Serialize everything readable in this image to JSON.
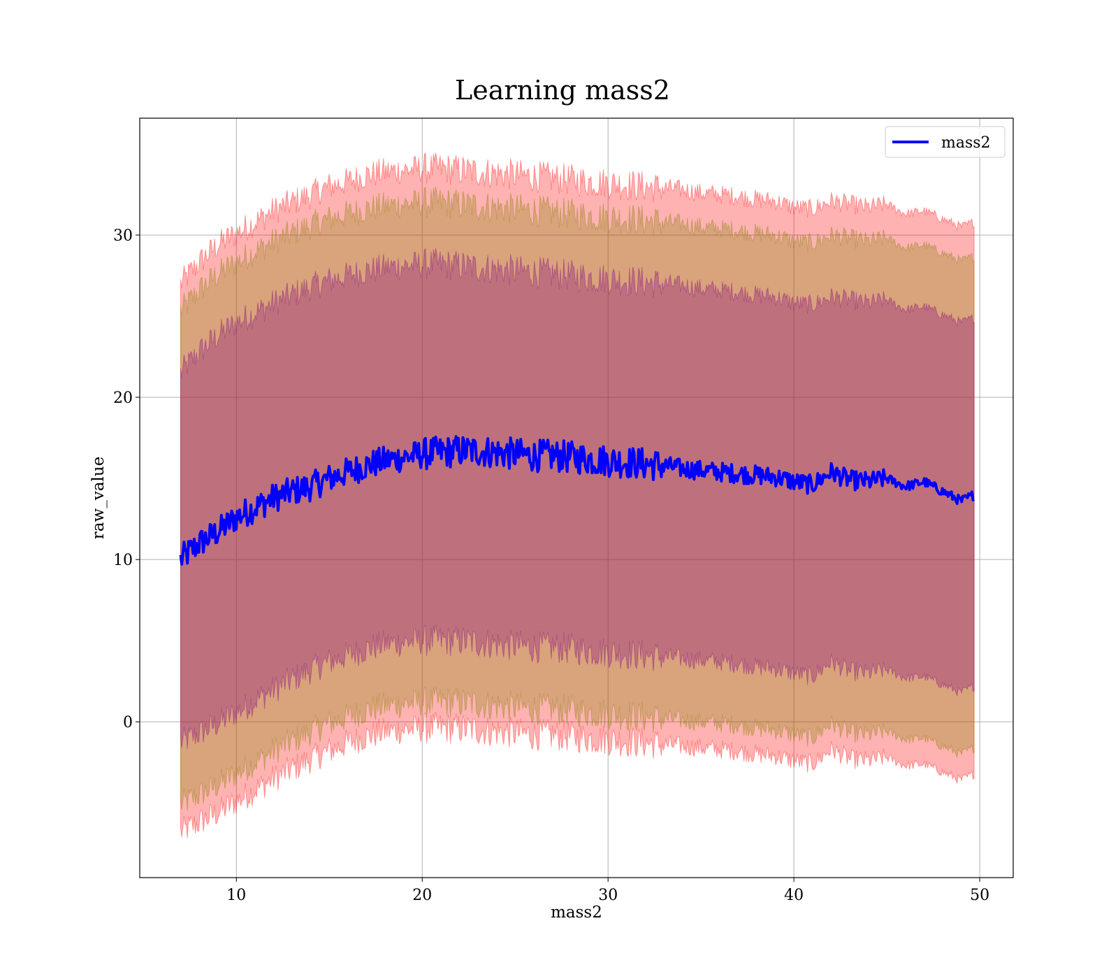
{
  "chart_data": {
    "type": "line",
    "title": "Learning mass2",
    "xlabel": "mass2",
    "ylabel": "raw_value",
    "xlim": [
      4.8,
      51.8
    ],
    "ylim": [
      -9.6,
      37.2
    ],
    "x_ticks": [
      10,
      20,
      30,
      40,
      50
    ],
    "y_ticks": [
      0,
      10,
      20,
      30
    ],
    "grid": true,
    "legend": {
      "position": "top-right",
      "entries": [
        "mass2"
      ]
    },
    "series": [
      {
        "name": "mass2",
        "color": "#0000ff",
        "x": [
          7.0,
          8.0,
          9.0,
          10.0,
          11.0,
          12.0,
          13.0,
          14.0,
          15.0,
          16.0,
          17.0,
          18.0,
          19.0,
          20.0,
          21.0,
          22.0,
          23.0,
          24.0,
          25.0,
          26.0,
          27.0,
          28.0,
          29.0,
          30.0,
          31.0,
          32.0,
          33.0,
          34.0,
          35.0,
          36.0,
          37.0,
          38.0,
          39.0,
          40.0,
          41.0,
          42.0,
          43.0,
          44.0,
          45.0,
          46.0,
          47.0,
          48.0,
          49.0,
          49.7
        ],
        "y": [
          10.0,
          11.0,
          11.7,
          12.6,
          13.2,
          13.8,
          14.2,
          14.5,
          15.0,
          15.4,
          15.8,
          16.1,
          16.3,
          16.5,
          16.6,
          16.7,
          16.7,
          16.6,
          16.5,
          16.4,
          16.4,
          16.3,
          16.2,
          16.1,
          16.0,
          15.9,
          15.8,
          15.6,
          15.5,
          15.4,
          15.3,
          15.2,
          15.1,
          14.8,
          14.6,
          15.4,
          14.9,
          14.8,
          15.0,
          14.5,
          14.8,
          14.2,
          13.6,
          14.0
        ]
      }
    ],
    "bands": [
      {
        "color": "#ff0000",
        "opacity": 0.3,
        "upper": [
          27.0,
          28.3,
          29.4,
          30.1,
          30.8,
          31.5,
          32.0,
          32.5,
          33.0,
          33.3,
          33.7,
          33.9,
          34.0,
          34.1,
          34.1,
          34.0,
          33.9,
          33.8,
          33.7,
          33.6,
          33.5,
          33.4,
          33.3,
          33.2,
          33.1,
          33.0,
          32.9,
          32.8,
          32.6,
          32.5,
          32.4,
          32.2,
          32.1,
          31.7,
          31.6,
          32.1,
          31.9,
          31.7,
          31.9,
          31.3,
          31.5,
          31.0,
          30.5,
          30.8
        ],
        "lower": [
          -6.8,
          -6.2,
          -5.6,
          -4.9,
          -4.2,
          -3.5,
          -2.9,
          -2.3,
          -1.8,
          -1.3,
          -0.9,
          -0.6,
          -0.5,
          -0.4,
          -0.4,
          -0.4,
          -0.5,
          -0.6,
          -0.7,
          -0.8,
          -0.8,
          -0.9,
          -1.0,
          -1.1,
          -1.2,
          -1.3,
          -1.4,
          -1.5,
          -1.6,
          -1.7,
          -1.8,
          -2.0,
          -2.1,
          -2.4,
          -2.6,
          -1.7,
          -2.3,
          -2.4,
          -2.2,
          -2.7,
          -2.6,
          -3.1,
          -3.6,
          -3.2
        ]
      },
      {
        "color": "#808000",
        "opacity": 0.3,
        "upper": [
          25.3,
          26.6,
          27.6,
          28.3,
          29.0,
          29.6,
          30.1,
          30.6,
          31.0,
          31.3,
          31.6,
          31.8,
          31.9,
          32.0,
          32.0,
          31.9,
          31.8,
          31.7,
          31.6,
          31.5,
          31.4,
          31.3,
          31.2,
          31.1,
          31.0,
          30.9,
          30.8,
          30.7,
          30.5,
          30.4,
          30.3,
          30.1,
          30.0,
          29.6,
          29.5,
          30.0,
          29.8,
          29.6,
          29.8,
          29.2,
          29.4,
          28.9,
          28.4,
          28.7
        ],
        "lower": [
          -5.1,
          -4.5,
          -3.9,
          -3.2,
          -2.5,
          -1.8,
          -1.2,
          -0.6,
          -0.1,
          0.3,
          0.7,
          1.0,
          1.1,
          1.2,
          1.2,
          1.2,
          1.1,
          1.0,
          0.9,
          0.8,
          0.8,
          0.7,
          0.6,
          0.5,
          0.4,
          0.3,
          0.2,
          0.1,
          0.0,
          -0.1,
          -0.2,
          -0.4,
          -0.5,
          -0.8,
          -1.0,
          -0.1,
          -0.7,
          -0.8,
          -0.6,
          -1.1,
          -1.0,
          -1.5,
          -2.0,
          -1.6
        ]
      },
      {
        "color": "#800080",
        "opacity": 0.3,
        "upper": [
          21.5,
          22.8,
          23.8,
          24.6,
          25.2,
          25.8,
          26.3,
          26.8,
          27.2,
          27.5,
          27.8,
          28.0,
          28.1,
          28.2,
          28.2,
          28.1,
          28.0,
          27.9,
          27.8,
          27.7,
          27.6,
          27.5,
          27.4,
          27.3,
          27.2,
          27.1,
          27.0,
          26.9,
          26.7,
          26.6,
          26.5,
          26.3,
          26.2,
          25.8,
          25.7,
          26.2,
          26.0,
          25.8,
          26.0,
          25.4,
          25.6,
          25.1,
          24.6,
          24.9
        ],
        "lower": [
          -1.3,
          -0.7,
          -0.1,
          0.6,
          1.3,
          2.0,
          2.6,
          3.2,
          3.7,
          4.1,
          4.5,
          4.8,
          4.9,
          5.0,
          5.0,
          5.0,
          4.9,
          4.8,
          4.7,
          4.6,
          4.6,
          4.5,
          4.4,
          4.3,
          4.2,
          4.1,
          4.0,
          3.9,
          3.8,
          3.7,
          3.6,
          3.4,
          3.3,
          3.0,
          2.8,
          3.7,
          3.1,
          3.0,
          3.2,
          2.7,
          2.8,
          2.3,
          1.8,
          2.2
        ]
      }
    ]
  }
}
